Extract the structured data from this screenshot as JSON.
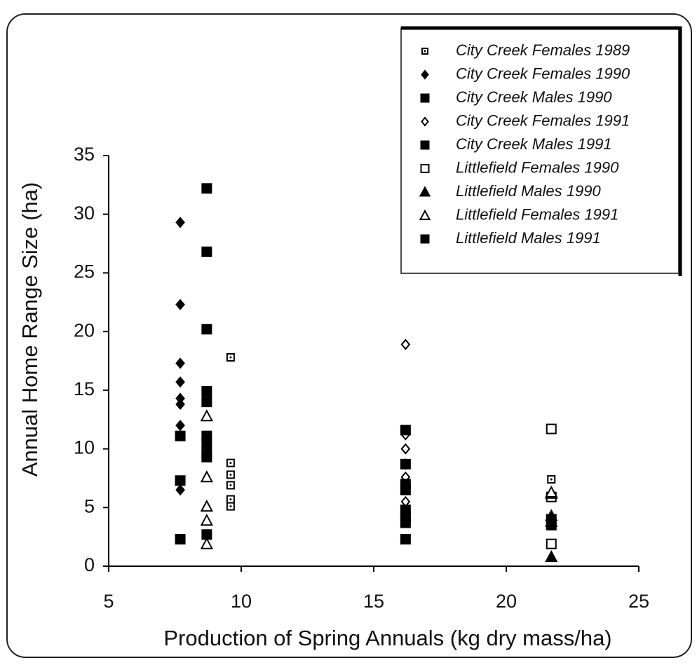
{
  "chart_data": {
    "type": "scatter",
    "xlabel": "Production of Spring Annuals (kg dry mass/ha)",
    "ylabel": "Annual Home Range Size (ha)",
    "xlim": [
      5,
      25
    ],
    "xticks": [
      5,
      10,
      15,
      20,
      25
    ],
    "ylim": [
      0,
      35
    ],
    "yticks": [
      0,
      5,
      10,
      15,
      20,
      25,
      30,
      35
    ],
    "legend": "top-right",
    "series": [
      {
        "name": "City Creek Females 1989",
        "color": "#000000",
        "marker": "square-open-dot",
        "x": [
          9.6,
          9.6,
          9.6,
          9.6,
          9.6,
          9.6,
          21.7
        ],
        "values": [
          17.8,
          8.8,
          7.8,
          6.9,
          5.7,
          5.1,
          7.4
        ]
      },
      {
        "name": "City Creek Females 1990",
        "color": "#000000",
        "marker": "diamond",
        "x": [
          7.7,
          7.7,
          7.7,
          7.7,
          7.7,
          7.7,
          7.7,
          7.7
        ],
        "values": [
          29.3,
          22.3,
          17.3,
          15.7,
          14.3,
          13.8,
          12.0,
          6.5
        ]
      },
      {
        "name": "City Creek Males 1990",
        "color": "#000000",
        "marker": "square",
        "x": [
          7.7,
          7.7,
          7.7,
          8.7,
          8.7,
          8.7,
          8.7,
          8.7,
          8.7,
          8.7,
          8.7,
          8.7,
          8.7
        ],
        "values": [
          11.1,
          7.3,
          2.3,
          32.2,
          26.8,
          20.2,
          14.9,
          14.0,
          11.1,
          10.5,
          9.7,
          9.3,
          2.7
        ]
      },
      {
        "name": "City Creek Females 1991",
        "color": "#000000",
        "marker": "diamond-open",
        "x": [
          16.2,
          16.2,
          16.2,
          16.2,
          16.2,
          16.2,
          16.2,
          16.2
        ],
        "values": [
          18.9,
          11.2,
          10.0,
          8.7,
          7.6,
          6.8,
          5.5,
          4.3
        ]
      },
      {
        "name": "City Creek Males 1991",
        "color": "#000000",
        "marker": "square",
        "x": [
          16.2,
          16.2,
          16.2,
          16.2,
          16.2,
          16.2,
          16.2,
          16.2
        ],
        "values": [
          11.6,
          8.7,
          7.0,
          6.5,
          4.8,
          4.2,
          3.7,
          2.3
        ]
      },
      {
        "name": "Littlefield Females 1990",
        "color": "#000000",
        "marker": "square-open",
        "x": [
          21.7,
          21.7,
          21.7
        ],
        "values": [
          11.7,
          5.9,
          1.9
        ]
      },
      {
        "name": "Littlefield Males 1990",
        "color": "#000000",
        "marker": "triangle",
        "x": [
          21.7,
          21.7,
          21.7,
          21.7
        ],
        "values": [
          6.2,
          4.3,
          3.8,
          0.8
        ]
      },
      {
        "name": "Littlefield Females 1991",
        "color": "#000000",
        "marker": "triangle-open",
        "x": [
          8.7,
          8.7,
          8.7,
          8.7,
          8.7,
          21.7
        ],
        "values": [
          12.8,
          7.6,
          5.1,
          3.9,
          1.9,
          6.3
        ]
      },
      {
        "name": "Littlefield Males 1991",
        "color": "#000000",
        "marker": "square",
        "x": [
          21.7,
          21.7
        ],
        "values": [
          4.0,
          3.5
        ]
      }
    ]
  }
}
